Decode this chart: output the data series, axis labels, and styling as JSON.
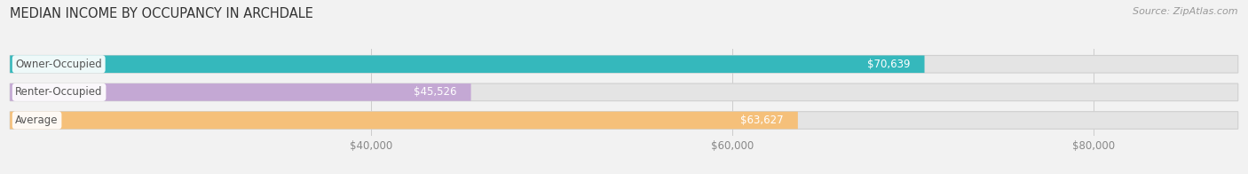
{
  "title": "MEDIAN INCOME BY OCCUPANCY IN ARCHDALE",
  "source": "Source: ZipAtlas.com",
  "categories": [
    "Owner-Occupied",
    "Renter-Occupied",
    "Average"
  ],
  "values": [
    70639,
    45526,
    63627
  ],
  "bar_colors": [
    "#35b8bc",
    "#c4a8d4",
    "#f5c07a"
  ],
  "label_texts": [
    "$70,639",
    "$45,526",
    "$63,627"
  ],
  "xlim": [
    20000,
    88000
  ],
  "xticks": [
    40000,
    60000,
    80000
  ],
  "xticklabels": [
    "$40,000",
    "$60,000",
    "$80,000"
  ],
  "bar_height": 0.62,
  "background_color": "#f2f2f2",
  "bar_bg_color": "#e4e4e4",
  "title_fontsize": 10.5,
  "source_fontsize": 8,
  "label_fontsize": 8.5,
  "cat_fontsize": 8.5,
  "value_label_color": "#ffffff",
  "cat_label_color": "#555555"
}
